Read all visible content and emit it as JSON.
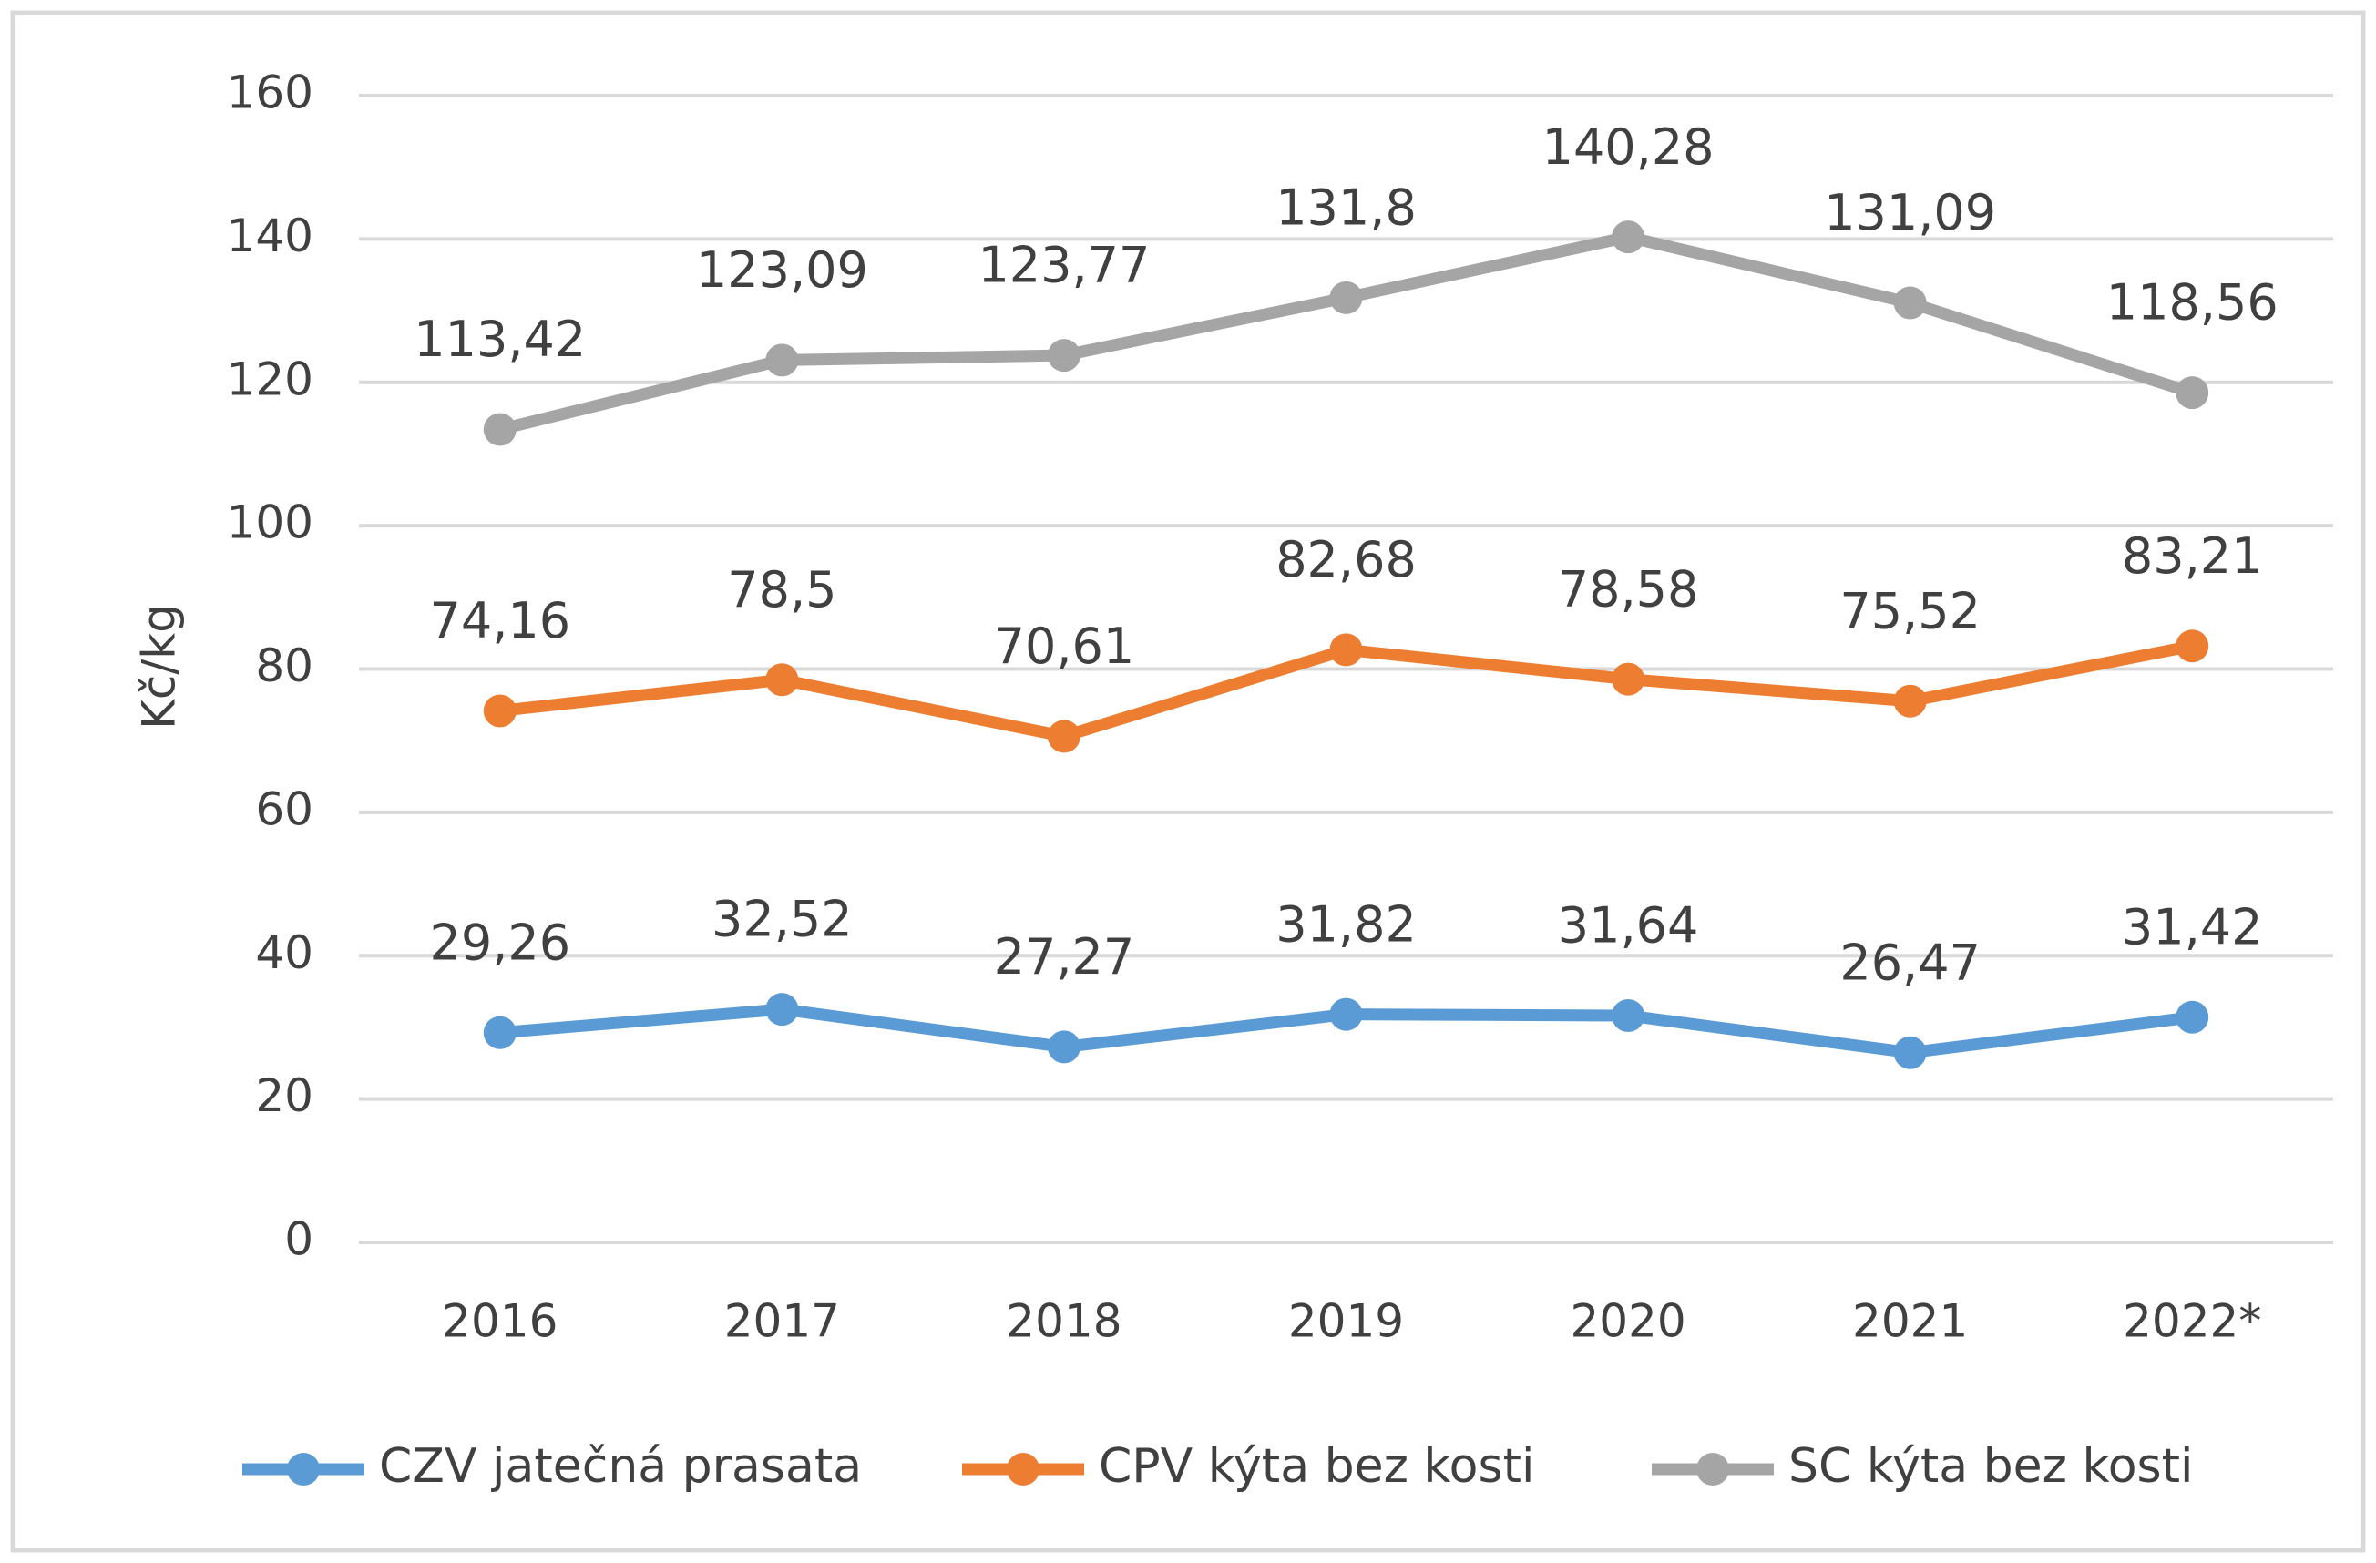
{
  "chart_data": {
    "type": "line",
    "y_label": "Kč/kg",
    "categories": [
      "2016",
      "2017",
      "2018",
      "2019",
      "2020",
      "2021",
      "2022*"
    ],
    "series": [
      {
        "name": "CZV jatečná prasata",
        "color": "#5b9bd5",
        "values": [
          29.26,
          32.52,
          27.27,
          31.82,
          31.64,
          26.47,
          31.42
        ],
        "value_labels": [
          "29,26",
          "32,52",
          "27,27",
          "31,82",
          "31,64",
          "26,47",
          "31,42"
        ]
      },
      {
        "name": "CPV kýta bez kosti",
        "color": "#ed7d31",
        "values": [
          74.16,
          78.5,
          70.61,
          82.68,
          78.58,
          75.52,
          83.21
        ],
        "value_labels": [
          "74,16",
          "78,5",
          "70,61",
          "82,68",
          "78,58",
          "75,52",
          "83,21"
        ]
      },
      {
        "name": "SC kýta bez kosti",
        "color": "#a5a5a5",
        "values": [
          113.42,
          123.09,
          123.77,
          131.8,
          140.28,
          131.09,
          118.56
        ],
        "value_labels": [
          "113,42",
          "123,09",
          "123,77",
          "131,8",
          "140,28",
          "131,09",
          "118,56"
        ]
      }
    ],
    "ylim": [
      0,
      160
    ],
    "yticks": [
      0,
      20,
      40,
      60,
      80,
      100,
      120,
      140,
      160
    ],
    "grid": true,
    "legend": "bottom"
  }
}
